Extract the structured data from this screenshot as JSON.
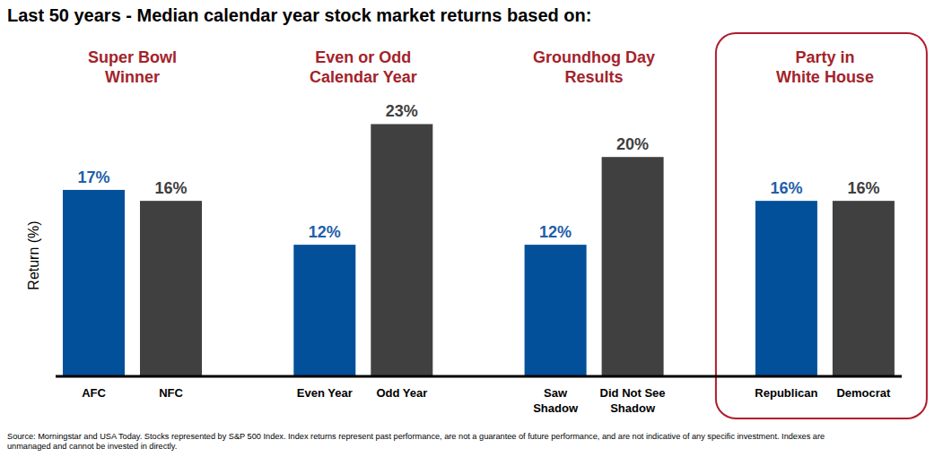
{
  "chart_data": {
    "type": "bar",
    "title": "Last 50 years - Median calendar year stock market returns based on:",
    "y_label": "Return (%)",
    "ylim": [
      0,
      25
    ],
    "tick_labels": false,
    "grid": false,
    "data_labels": true,
    "groups": [
      {
        "title": "Super Bowl\nWinner",
        "categories": [
          "AFC",
          "NFC"
        ],
        "values": [
          17,
          16
        ],
        "value_labels": [
          "17%",
          "16%"
        ],
        "colors": [
          "#03509a",
          "#404040"
        ]
      },
      {
        "title": "Even or Odd\nCalendar Year",
        "categories": [
          "Even Year",
          "Odd Year"
        ],
        "values": [
          12,
          23
        ],
        "value_labels": [
          "12%",
          "23%"
        ],
        "colors": [
          "#03509a",
          "#404040"
        ]
      },
      {
        "title": "Groundhog Day\nResults",
        "categories": [
          "Saw\nShadow",
          "Did Not See\nShadow"
        ],
        "values": [
          12,
          20
        ],
        "value_labels": [
          "12%",
          "20%"
        ],
        "colors": [
          "#03509a",
          "#404040"
        ]
      },
      {
        "title": "Party in\nWhite House",
        "categories": [
          "Republican",
          "Democrat"
        ],
        "values": [
          16,
          16
        ],
        "value_labels": [
          "16%",
          "16%"
        ],
        "colors": [
          "#03509a",
          "#404040"
        ]
      }
    ],
    "footnote": "Source: Morningstar and USA Today. Stocks represented by S&P 500 Index. Index returns represent past performance, are not a guarantee of future performance, and are not indicative of any specific investment. Indexes are\nunmanaged and cannot be invested in directly."
  }
}
